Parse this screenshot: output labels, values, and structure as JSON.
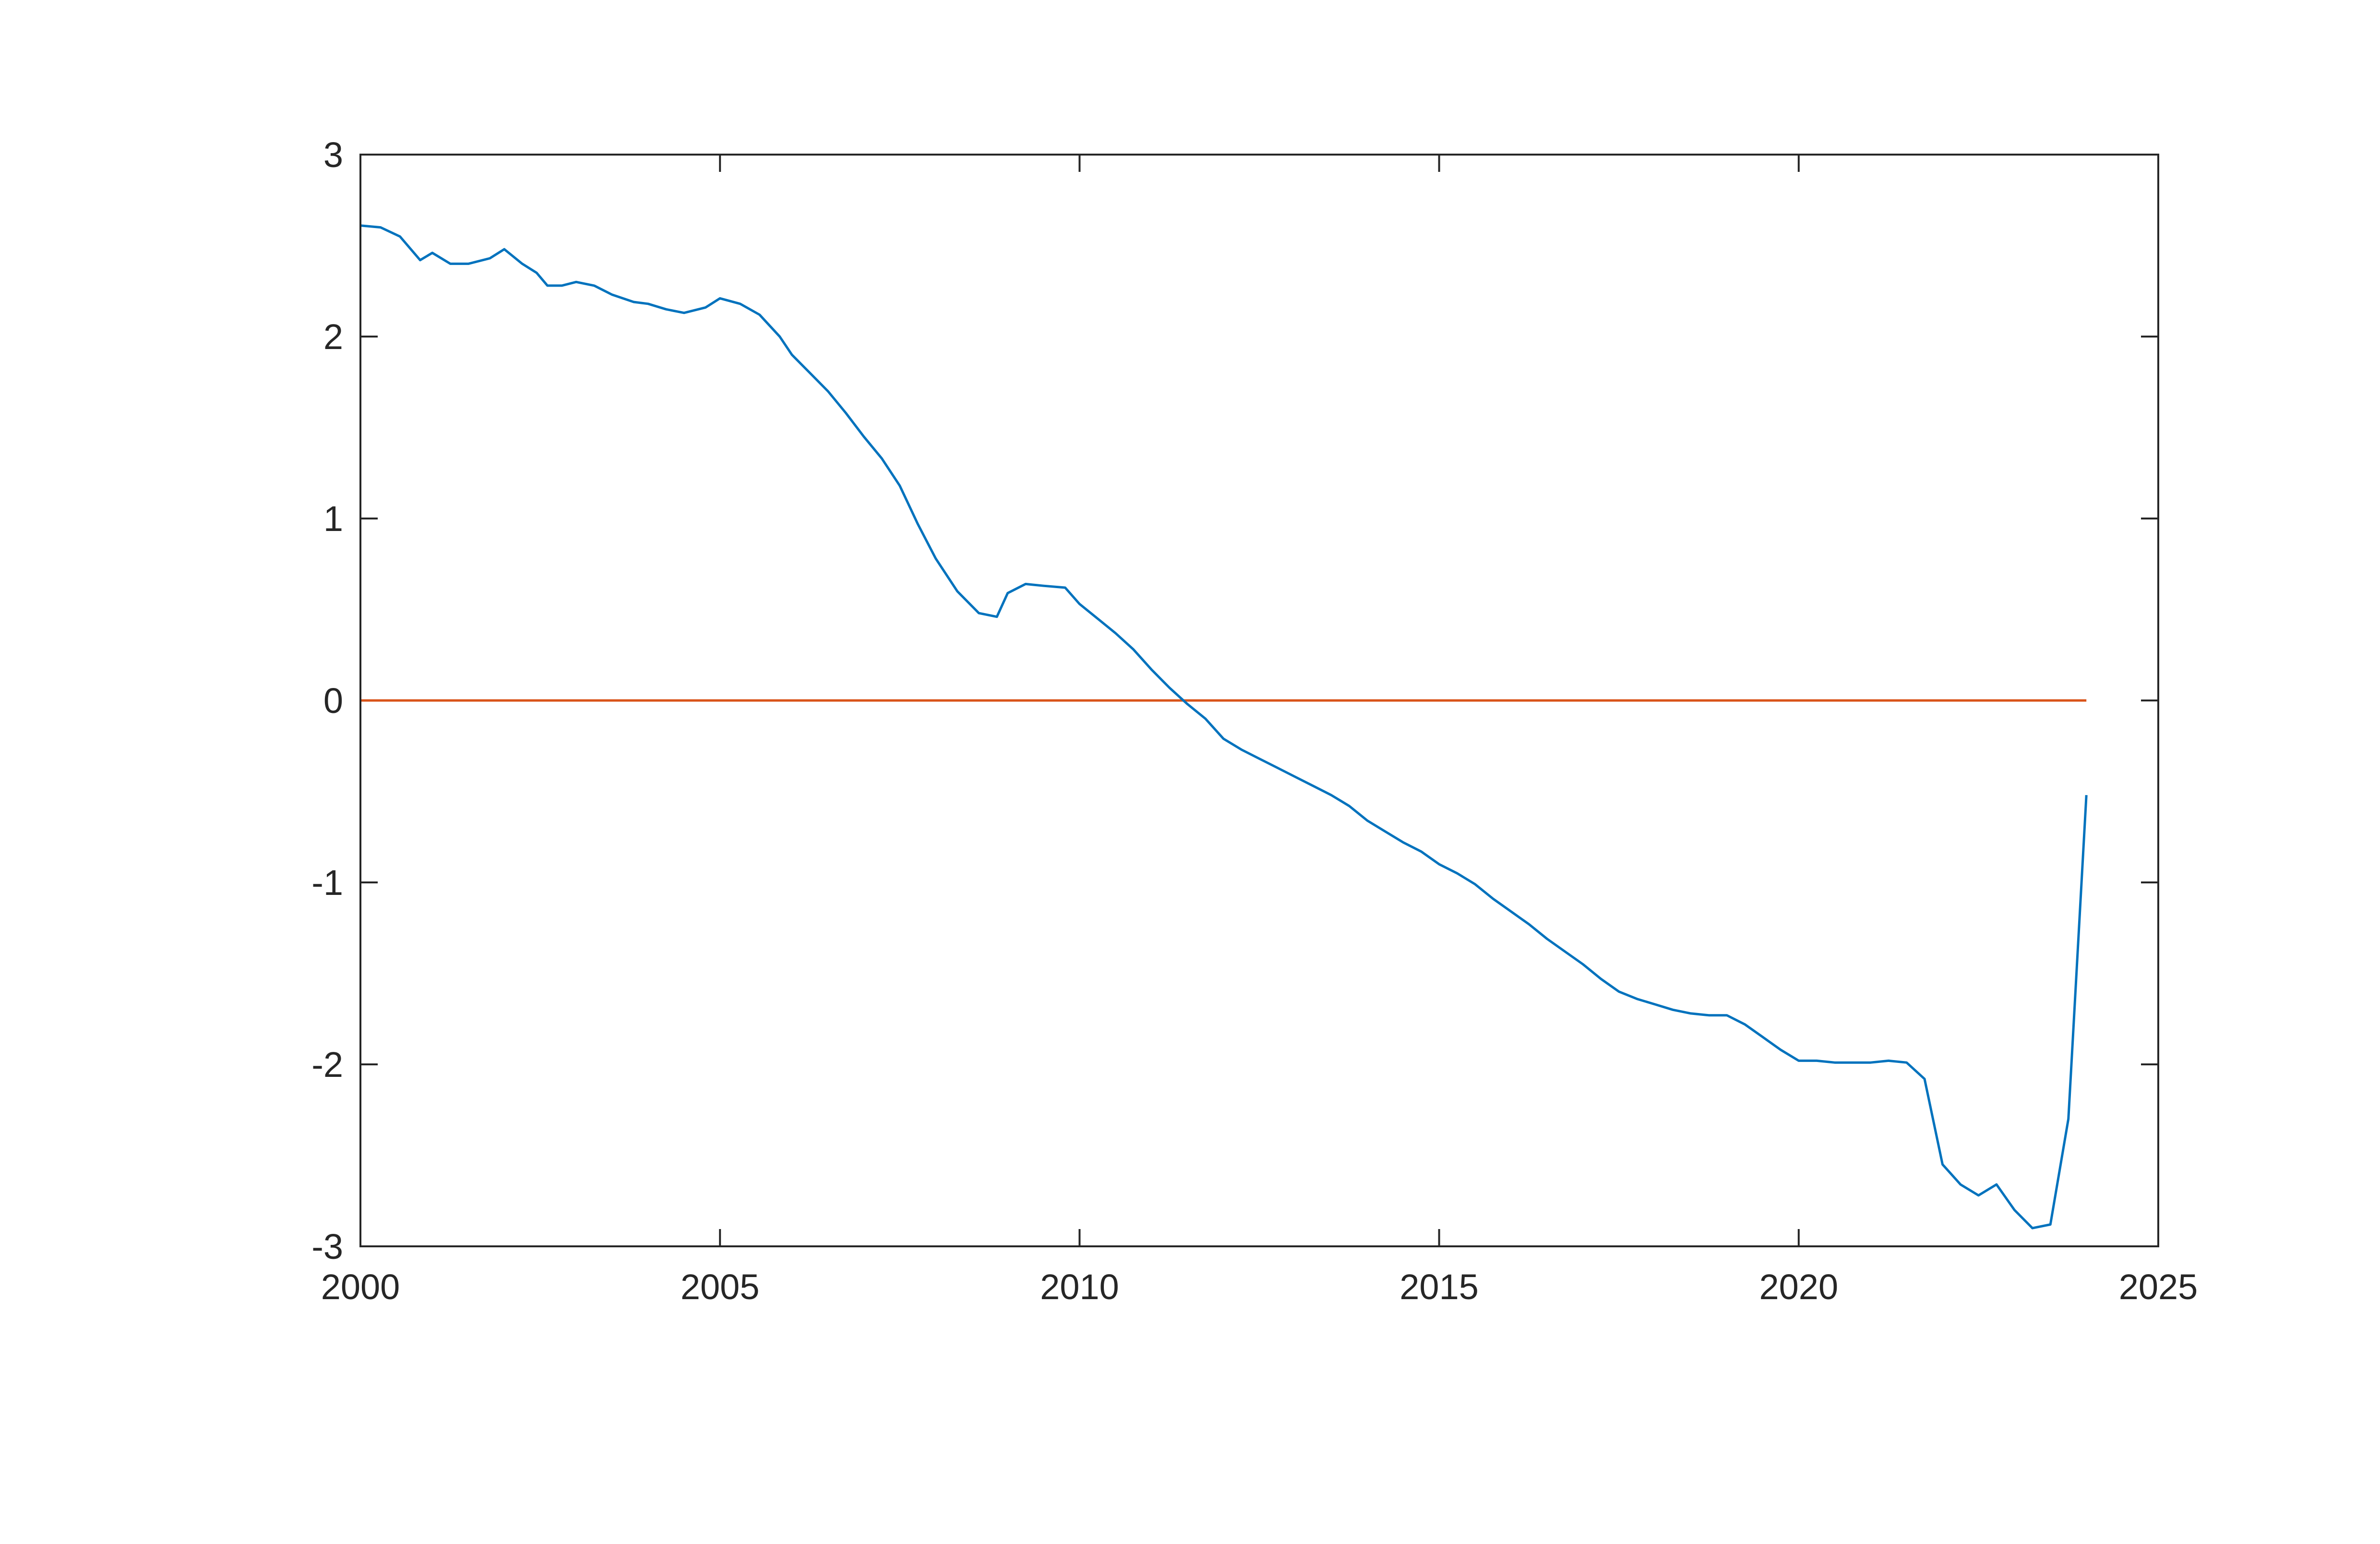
{
  "chart_data": {
    "type": "line",
    "title": "",
    "xlabel": "",
    "ylabel": "",
    "xlim": [
      2000,
      2025
    ],
    "ylim": [
      -3,
      3
    ],
    "x_ticks": [
      2000,
      2005,
      2010,
      2015,
      2020,
      2025
    ],
    "y_ticks": [
      -3,
      -2,
      -1,
      0,
      1,
      2,
      3
    ],
    "x_tick_labels": [
      "2000",
      "2005",
      "2010",
      "2015",
      "2020",
      "2025"
    ],
    "y_tick_labels": [
      "-3",
      "-2",
      "-1",
      "0",
      "1",
      "2",
      "3"
    ],
    "grid": false,
    "legend": "none",
    "series": [
      {
        "color": "#0072BD",
        "x": [
          2000.0,
          2000.28,
          2000.55,
          2000.83,
          2001.0,
          2001.25,
          2001.5,
          2001.8,
          2002.0,
          2002.25,
          2002.45,
          2002.6,
          2002.8,
          2003.0,
          2003.25,
          2003.5,
          2003.8,
          2004.0,
          2004.25,
          2004.5,
          2004.8,
          2005.0,
          2005.28,
          2005.55,
          2005.83,
          2006.0,
          2006.25,
          2006.5,
          2006.75,
          2007.0,
          2007.25,
          2007.5,
          2007.75,
          2008.0,
          2008.3,
          2008.6,
          2008.85,
          2009.0,
          2009.25,
          2009.5,
          2009.8,
          2010.0,
          2010.25,
          2010.5,
          2010.75,
          2011.0,
          2011.25,
          2011.5,
          2011.75,
          2012.0,
          2012.25,
          2012.5,
          2012.75,
          2013.0,
          2013.25,
          2013.5,
          2013.75,
          2014.0,
          2014.25,
          2014.5,
          2014.75,
          2015.0,
          2015.25,
          2015.5,
          2015.75,
          2016.0,
          2016.25,
          2016.5,
          2016.75,
          2017.0,
          2017.25,
          2017.5,
          2017.75,
          2018.0,
          2018.25,
          2018.5,
          2018.75,
          2019.0,
          2019.25,
          2019.5,
          2019.75,
          2020.0,
          2020.25,
          2020.5,
          2020.75,
          2021.0,
          2021.25,
          2021.5,
          2021.75,
          2022.0,
          2022.25,
          2022.5,
          2022.75,
          2023.0,
          2023.25,
          2023.5,
          2023.75,
          2024.0
        ],
        "values": [
          2.61,
          2.6,
          2.55,
          2.42,
          2.46,
          2.4,
          2.4,
          2.43,
          2.48,
          2.4,
          2.35,
          2.28,
          2.28,
          2.3,
          2.28,
          2.23,
          2.19,
          2.18,
          2.15,
          2.13,
          2.16,
          2.21,
          2.18,
          2.12,
          2.0,
          1.9,
          1.8,
          1.7,
          1.58,
          1.45,
          1.33,
          1.18,
          0.97,
          0.78,
          0.6,
          0.48,
          0.46,
          0.59,
          0.64,
          0.63,
          0.62,
          0.53,
          0.45,
          0.37,
          0.28,
          0.17,
          0.07,
          -0.02,
          -0.1,
          -0.21,
          -0.27,
          -0.32,
          -0.37,
          -0.42,
          -0.47,
          -0.52,
          -0.58,
          -0.66,
          -0.72,
          -0.78,
          -0.83,
          -0.9,
          -0.95,
          -1.01,
          -1.09,
          -1.16,
          -1.23,
          -1.31,
          -1.38,
          -1.45,
          -1.53,
          -1.6,
          -1.64,
          -1.67,
          -1.7,
          -1.72,
          -1.73,
          -1.73,
          -1.78,
          -1.85,
          -1.92,
          -1.98,
          -1.98,
          -1.99,
          -1.99,
          -1.99,
          -1.98,
          -1.99,
          -2.08,
          -2.55,
          -2.66,
          -2.72,
          -2.66,
          -2.8,
          -2.9,
          -2.88,
          -2.3,
          -0.52
        ]
      },
      {
        "color": "#D95319",
        "x": [
          2000.0,
          2024.0
        ],
        "values": [
          0,
          0
        ]
      }
    ]
  }
}
